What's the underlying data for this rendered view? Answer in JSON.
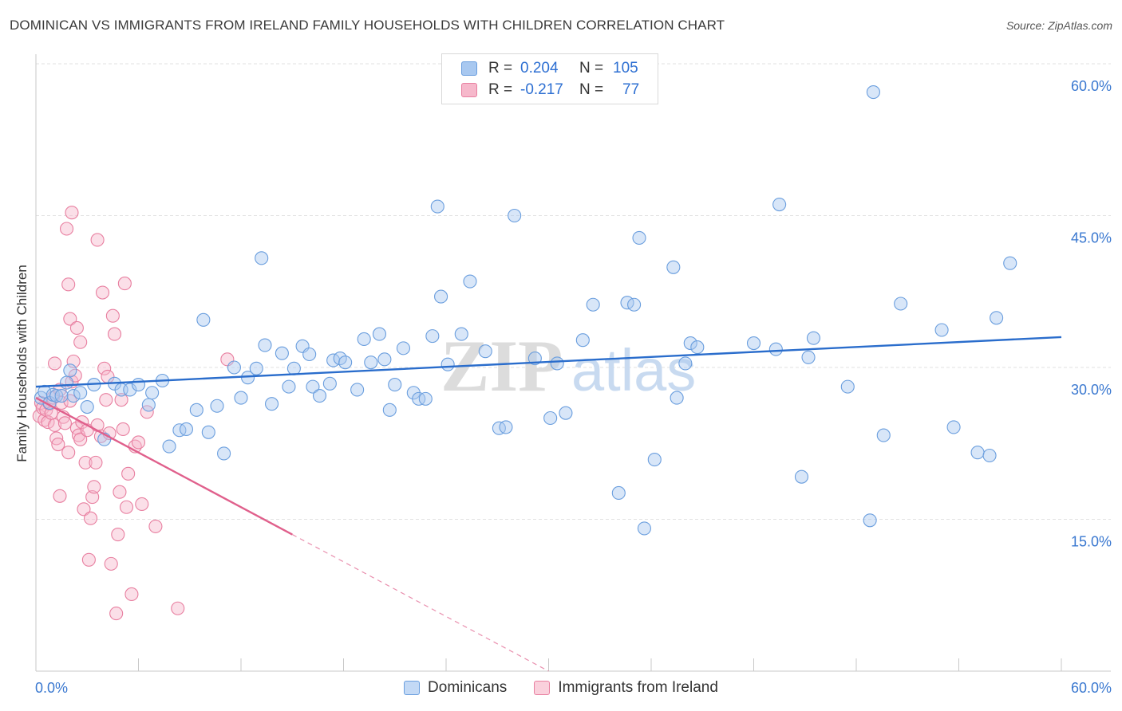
{
  "header": {
    "title": "DOMINICAN VS IMMIGRANTS FROM IRELAND FAMILY HOUSEHOLDS WITH CHILDREN CORRELATION CHART",
    "source": "Source: ZipAtlas.com"
  },
  "legend_top": {
    "rows": [
      {
        "r_label": "R =",
        "r_value": "0.204",
        "n_label": "N =",
        "n_value": "105"
      },
      {
        "r_label": "R =",
        "r_value": "-0.217",
        "n_label": "N =",
        "n_value": "77"
      }
    ]
  },
  "legend_bottom": {
    "items": [
      {
        "label": "Dominicans"
      },
      {
        "label": "Immigrants from Ireland"
      }
    ]
  },
  "watermark": {
    "part1": "ZIP",
    "part2": "atlas"
  },
  "colors": {
    "blue_fill": "#a8c8f0",
    "blue_stroke": "#6a9ede",
    "blue_line": "#2a6dcc",
    "pink_fill": "#f6b8cb",
    "pink_stroke": "#e87fa0",
    "pink_line": "#e0608c",
    "tick_text": "#3a78d0",
    "grid": "#e2e2e2"
  },
  "chart_data": {
    "type": "scatter",
    "title": "DOMINICAN VS IMMIGRANTS FROM IRELAND FAMILY HOUSEHOLDS WITH CHILDREN CORRELATION CHART",
    "xlabel": "",
    "ylabel": "Family Households with Children",
    "xlim": [
      0,
      60
    ],
    "ylim": [
      0,
      60
    ],
    "x_tick_labels": [
      "0.0%",
      "60.0%"
    ],
    "y_ticks": [
      15,
      30,
      45,
      60
    ],
    "y_tick_labels": [
      "15.0%",
      "30.0%",
      "45.0%",
      "60.0%"
    ],
    "grid": true,
    "legend_position": "bottom",
    "series": [
      {
        "name": "Dominicans",
        "color": "#6a9ede",
        "r": 0.204,
        "n": 105,
        "trend": {
          "x": [
            0,
            60
          ],
          "y": [
            28.1,
            33.0
          ]
        },
        "points": [
          [
            0.3,
            27.0
          ],
          [
            0.5,
            27.6
          ],
          [
            0.8,
            26.5
          ],
          [
            1.0,
            27.3
          ],
          [
            1.2,
            27.2
          ],
          [
            1.5,
            27.2
          ],
          [
            1.8,
            28.5
          ],
          [
            2.0,
            29.7
          ],
          [
            2.2,
            27.2
          ],
          [
            2.6,
            27.5
          ],
          [
            3.0,
            26.1
          ],
          [
            3.4,
            28.3
          ],
          [
            4.0,
            22.9
          ],
          [
            4.6,
            28.4
          ],
          [
            5.0,
            27.8
          ],
          [
            5.5,
            27.8
          ],
          [
            6.0,
            28.3
          ],
          [
            6.6,
            26.3
          ],
          [
            6.8,
            27.5
          ],
          [
            7.4,
            28.7
          ],
          [
            7.8,
            22.2
          ],
          [
            8.4,
            23.8
          ],
          [
            8.8,
            23.9
          ],
          [
            9.4,
            25.8
          ],
          [
            9.8,
            34.7
          ],
          [
            10.1,
            23.6
          ],
          [
            10.6,
            26.2
          ],
          [
            11.0,
            21.5
          ],
          [
            11.6,
            30.0
          ],
          [
            12.0,
            27.0
          ],
          [
            12.4,
            29.0
          ],
          [
            12.9,
            29.9
          ],
          [
            13.2,
            40.8
          ],
          [
            13.4,
            32.2
          ],
          [
            13.8,
            26.4
          ],
          [
            14.4,
            31.4
          ],
          [
            14.8,
            28.1
          ],
          [
            15.1,
            29.9
          ],
          [
            15.6,
            32.1
          ],
          [
            16.0,
            31.3
          ],
          [
            16.2,
            28.1
          ],
          [
            16.6,
            27.2
          ],
          [
            17.2,
            28.4
          ],
          [
            17.4,
            30.7
          ],
          [
            17.8,
            30.9
          ],
          [
            18.1,
            30.5
          ],
          [
            18.8,
            27.8
          ],
          [
            19.2,
            32.8
          ],
          [
            19.6,
            30.5
          ],
          [
            20.1,
            33.3
          ],
          [
            20.4,
            30.8
          ],
          [
            20.7,
            25.8
          ],
          [
            21.0,
            28.3
          ],
          [
            21.5,
            31.9
          ],
          [
            22.1,
            27.5
          ],
          [
            22.4,
            26.9
          ],
          [
            22.8,
            26.9
          ],
          [
            23.2,
            33.1
          ],
          [
            23.5,
            45.9
          ],
          [
            23.7,
            37.0
          ],
          [
            24.1,
            30.3
          ],
          [
            24.9,
            33.3
          ],
          [
            25.4,
            38.5
          ],
          [
            26.3,
            31.6
          ],
          [
            27.1,
            24.0
          ],
          [
            27.5,
            24.1
          ],
          [
            28.0,
            45.0
          ],
          [
            29.2,
            30.9
          ],
          [
            30.1,
            25.0
          ],
          [
            30.5,
            30.4
          ],
          [
            31.0,
            25.5
          ],
          [
            32.0,
            32.7
          ],
          [
            32.6,
            36.2
          ],
          [
            34.1,
            17.6
          ],
          [
            34.6,
            36.4
          ],
          [
            35.0,
            36.2
          ],
          [
            35.3,
            42.8
          ],
          [
            35.6,
            14.1
          ],
          [
            36.2,
            20.9
          ],
          [
            37.3,
            39.9
          ],
          [
            37.5,
            27.0
          ],
          [
            38.0,
            30.4
          ],
          [
            38.3,
            32.4
          ],
          [
            38.7,
            32.0
          ],
          [
            42.0,
            32.4
          ],
          [
            43.3,
            31.8
          ],
          [
            43.5,
            46.1
          ],
          [
            44.8,
            19.2
          ],
          [
            45.2,
            31.0
          ],
          [
            45.5,
            32.9
          ],
          [
            47.5,
            28.1
          ],
          [
            48.8,
            14.9
          ],
          [
            49.0,
            57.2
          ],
          [
            49.6,
            23.3
          ],
          [
            50.6,
            36.3
          ],
          [
            53.0,
            33.7
          ],
          [
            53.7,
            24.1
          ],
          [
            55.1,
            21.6
          ],
          [
            55.8,
            21.3
          ],
          [
            56.2,
            34.9
          ],
          [
            57.0,
            40.3
          ]
        ]
      },
      {
        "name": "Immigrants from Ireland",
        "color": "#e87fa0",
        "r": -0.217,
        "n": 77,
        "trend": {
          "x": [
            0,
            15
          ],
          "y": [
            27.0,
            13.5
          ],
          "dashed_to": {
            "x": 30,
            "y": 0
          }
        },
        "points": [
          [
            0.2,
            25.2
          ],
          [
            0.3,
            26.5
          ],
          [
            0.4,
            26.0
          ],
          [
            0.5,
            24.8
          ],
          [
            0.6,
            25.8
          ],
          [
            0.7,
            24.6
          ],
          [
            0.8,
            26.4
          ],
          [
            0.9,
            25.5
          ],
          [
            1.0,
            27.0
          ],
          [
            1.1,
            24.3
          ],
          [
            1.1,
            30.4
          ],
          [
            1.2,
            23.0
          ],
          [
            1.3,
            22.4
          ],
          [
            1.4,
            17.3
          ],
          [
            1.4,
            27.8
          ],
          [
            1.5,
            26.5
          ],
          [
            1.6,
            25.1
          ],
          [
            1.7,
            24.5
          ],
          [
            1.8,
            43.7
          ],
          [
            1.9,
            21.6
          ],
          [
            1.9,
            38.2
          ],
          [
            2.0,
            26.7
          ],
          [
            2.0,
            34.8
          ],
          [
            2.1,
            45.3
          ],
          [
            2.1,
            28.6
          ],
          [
            2.2,
            30.6
          ],
          [
            2.3,
            29.2
          ],
          [
            2.4,
            24.0
          ],
          [
            2.4,
            33.9
          ],
          [
            2.5,
            23.3
          ],
          [
            2.6,
            22.9
          ],
          [
            2.6,
            32.5
          ],
          [
            2.7,
            24.6
          ],
          [
            2.8,
            16.0
          ],
          [
            2.9,
            20.6
          ],
          [
            3.0,
            23.8
          ],
          [
            3.1,
            11.0
          ],
          [
            3.2,
            15.1
          ],
          [
            3.3,
            17.2
          ],
          [
            3.4,
            18.2
          ],
          [
            3.5,
            20.6
          ],
          [
            3.6,
            24.3
          ],
          [
            3.6,
            42.6
          ],
          [
            3.8,
            23.2
          ],
          [
            3.9,
            37.4
          ],
          [
            4.0,
            29.9
          ],
          [
            4.1,
            26.8
          ],
          [
            4.2,
            29.1
          ],
          [
            4.3,
            23.5
          ],
          [
            4.4,
            10.6
          ],
          [
            4.5,
            35.1
          ],
          [
            4.6,
            33.3
          ],
          [
            4.7,
            5.7
          ],
          [
            4.8,
            13.5
          ],
          [
            4.9,
            17.7
          ],
          [
            5.0,
            26.8
          ],
          [
            5.1,
            23.9
          ],
          [
            5.2,
            38.3
          ],
          [
            5.3,
            16.2
          ],
          [
            5.4,
            19.5
          ],
          [
            5.6,
            7.6
          ],
          [
            5.8,
            22.2
          ],
          [
            6.0,
            22.6
          ],
          [
            6.2,
            16.5
          ],
          [
            6.5,
            25.6
          ],
          [
            7.0,
            14.3
          ],
          [
            8.3,
            6.2
          ],
          [
            11.2,
            30.8
          ]
        ]
      }
    ]
  }
}
